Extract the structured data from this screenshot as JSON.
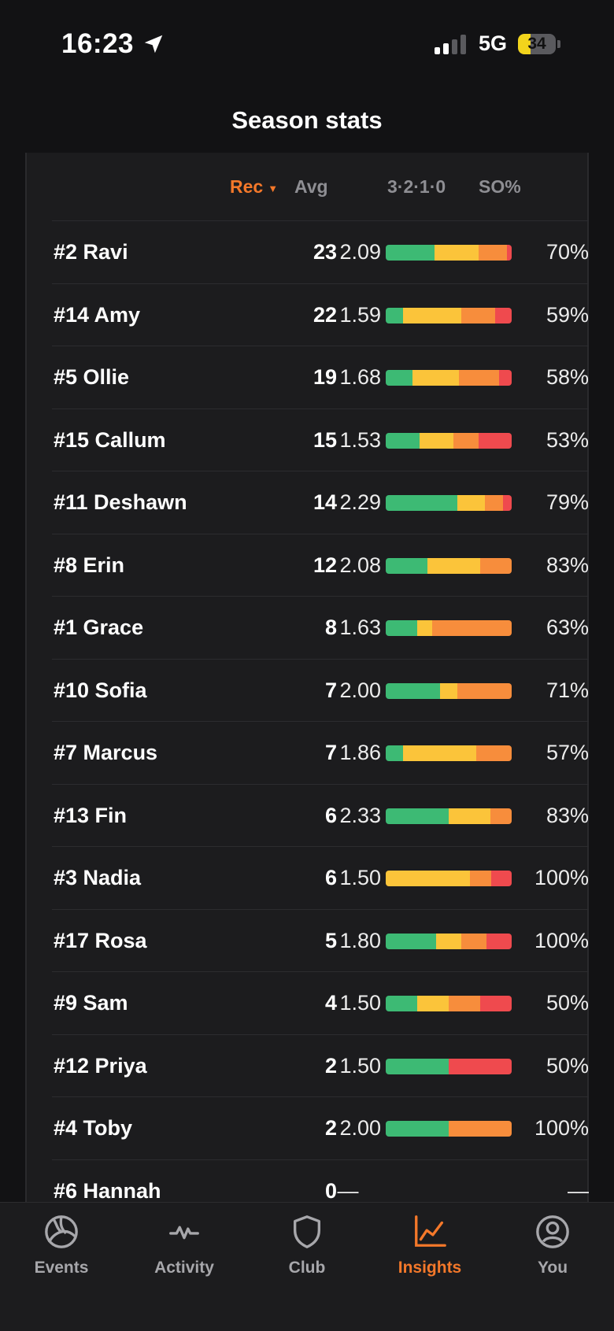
{
  "status_bar": {
    "time": "16:23",
    "network": "5G",
    "battery": "34",
    "battery_level": 0.34
  },
  "title": "Season stats",
  "table": {
    "headers": {
      "rec": "Rec",
      "avg": "Avg",
      "dist": "3·2·1·0",
      "so": "SO%"
    },
    "rows": [
      {
        "name": "#2 Ravi",
        "rec": "23",
        "avg": "2.09",
        "so": "70%",
        "dist": [
          0.39,
          0.35,
          0.22,
          0.04
        ]
      },
      {
        "name": "#14 Amy",
        "rec": "22",
        "avg": "1.59",
        "so": "59%",
        "dist": [
          0.14,
          0.46,
          0.27,
          0.13
        ]
      },
      {
        "name": "#5 Ollie",
        "rec": "19",
        "avg": "1.68",
        "so": "58%",
        "dist": [
          0.21,
          0.37,
          0.32,
          0.1
        ]
      },
      {
        "name": "#15 Callum",
        "rec": "15",
        "avg": "1.53",
        "so": "53%",
        "dist": [
          0.27,
          0.27,
          0.2,
          0.26
        ]
      },
      {
        "name": "#11 Deshawn",
        "rec": "14",
        "avg": "2.29",
        "so": "79%",
        "dist": [
          0.57,
          0.22,
          0.14,
          0.07
        ]
      },
      {
        "name": "#8 Erin",
        "rec": "12",
        "avg": "2.08",
        "so": "83%",
        "dist": [
          0.33,
          0.42,
          0.25,
          0
        ]
      },
      {
        "name": "#1 Grace",
        "rec": "8",
        "avg": "1.63",
        "so": "63%",
        "dist": [
          0.25,
          0.12,
          0.63,
          0
        ]
      },
      {
        "name": "#10 Sofia",
        "rec": "7",
        "avg": "2.00",
        "so": "71%",
        "dist": [
          0.43,
          0.14,
          0.43,
          0
        ]
      },
      {
        "name": "#7 Marcus",
        "rec": "7",
        "avg": "1.86",
        "so": "57%",
        "dist": [
          0.14,
          0.58,
          0.28,
          0
        ]
      },
      {
        "name": "#13 Fin",
        "rec": "6",
        "avg": "2.33",
        "so": "83%",
        "dist": [
          0.5,
          0.33,
          0.17,
          0
        ]
      },
      {
        "name": "#3 Nadia",
        "rec": "6",
        "avg": "1.50",
        "so": "100%",
        "dist": [
          0,
          0.67,
          0.17,
          0.16
        ]
      },
      {
        "name": "#17 Rosa",
        "rec": "5",
        "avg": "1.80",
        "so": "100%",
        "dist": [
          0.4,
          0.2,
          0.2,
          0.2
        ]
      },
      {
        "name": "#9 Sam",
        "rec": "4",
        "avg": "1.50",
        "so": "50%",
        "dist": [
          0.25,
          0.25,
          0.25,
          0.25
        ]
      },
      {
        "name": "#12 Priya",
        "rec": "2",
        "avg": "1.50",
        "so": "50%",
        "dist": [
          0.5,
          0,
          0,
          0.5
        ]
      },
      {
        "name": "#4 Toby",
        "rec": "2",
        "avg": "2.00",
        "so": "100%",
        "dist": [
          0.5,
          0,
          0.5,
          0
        ]
      },
      {
        "name": "#6 Hannah",
        "rec": "0",
        "avg": "—",
        "so": "—",
        "dist": []
      }
    ]
  },
  "tabs": [
    {
      "label": "Events",
      "icon": "volleyball-icon",
      "active": false
    },
    {
      "label": "Activity",
      "icon": "activity-pulse-icon",
      "active": false
    },
    {
      "label": "Club",
      "icon": "shield-icon",
      "active": false
    },
    {
      "label": "Insights",
      "icon": "line-chart-icon",
      "active": true
    },
    {
      "label": "You",
      "icon": "user-profile-icon",
      "active": false
    }
  ],
  "colors": {
    "accent": "#f4782a",
    "score3": "#3dba74",
    "score2": "#fbc43a",
    "score1": "#f78d3c",
    "score0": "#ef4a4e"
  }
}
